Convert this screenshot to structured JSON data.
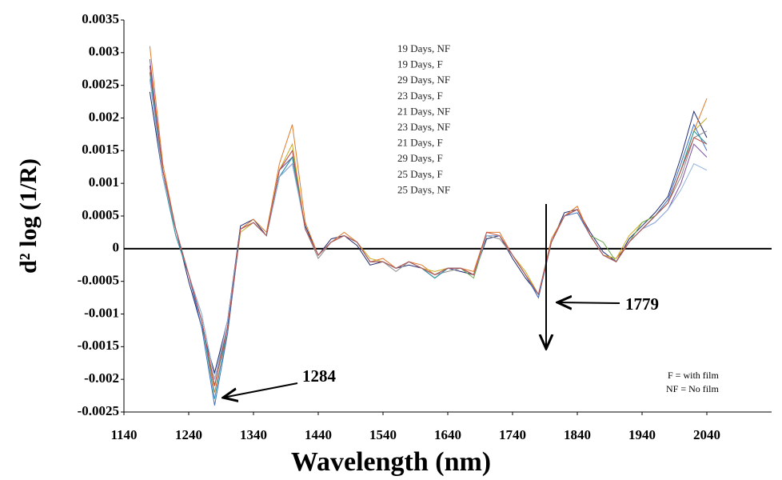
{
  "chart_data": {
    "type": "line",
    "x_label": "Wavelength (nm)",
    "y_label": "d² log (1/R)",
    "x": [
      1180,
      1200,
      1220,
      1240,
      1260,
      1280,
      1300,
      1320,
      1340,
      1360,
      1380,
      1400,
      1420,
      1440,
      1460,
      1480,
      1500,
      1520,
      1540,
      1560,
      1580,
      1600,
      1620,
      1640,
      1660,
      1680,
      1700,
      1720,
      1740,
      1760,
      1780,
      1800,
      1820,
      1840,
      1860,
      1880,
      1900,
      1920,
      1940,
      1960,
      1980,
      2000,
      2020,
      2040
    ],
    "xlim": [
      1140,
      2140
    ],
    "xticks": [
      1140,
      1240,
      1340,
      1440,
      1540,
      1640,
      1740,
      1840,
      1940,
      2040
    ],
    "ylim": [
      -0.0025,
      0.0035
    ],
    "yticks": [
      0.0035,
      0.003,
      0.0025,
      0.002,
      0.0015,
      0.001,
      0.0005,
      0,
      -0.0005,
      -0.001,
      -0.0015,
      -0.002,
      -0.0025
    ],
    "series": [
      {
        "name": "19 Days, NF",
        "color": "#1f2a6e",
        "values": [
          0.0024,
          0.0011,
          0.0003,
          -0.0005,
          -0.0012,
          -0.0019,
          -0.0011,
          0.00035,
          0.00045,
          0.0002,
          0.0011,
          0.0013,
          0.00035,
          -0.0001,
          0.00015,
          0.0002,
          5e-05,
          -0.00025,
          -0.0002,
          -0.0003,
          -0.00025,
          -0.0003,
          -0.00045,
          -0.0003,
          -0.00035,
          -0.0004,
          0.00015,
          0.0002,
          -0.00015,
          -0.00045,
          -0.0007,
          0.0001,
          0.00055,
          0.0006,
          0.00025,
          -5e-05,
          -0.0002,
          0.00015,
          0.00035,
          0.00055,
          0.0008,
          0.0014,
          0.0021,
          0.0017
        ]
      },
      {
        "name": "19 Days, F",
        "color": "#e07b2a",
        "values": [
          0.0031,
          0.0013,
          0.0003,
          -0.0004,
          -0.0011,
          -0.0022,
          -0.0013,
          0.0003,
          0.00045,
          0.00025,
          0.0013,
          0.0019,
          0.0004,
          -0.0001,
          0.0001,
          0.00025,
          0.0001,
          -0.0002,
          -0.00015,
          -0.0003,
          -0.0002,
          -0.00025,
          -0.0004,
          -0.0003,
          -0.0003,
          -0.00035,
          0.00025,
          0.00025,
          -0.0001,
          -0.0004,
          -0.0007,
          0.00015,
          0.0005,
          0.00065,
          0.0002,
          -0.0001,
          -0.00015,
          0.0001,
          0.0003,
          0.0005,
          0.0007,
          0.0012,
          0.0018,
          0.0023
        ]
      },
      {
        "name": "29 Days, NF",
        "color": "#8c8c8c",
        "values": [
          0.0028,
          0.0012,
          0.0002,
          -0.0004,
          -0.001,
          -0.002,
          -0.0012,
          0.0003,
          0.0004,
          0.0002,
          0.0012,
          0.0015,
          0.0003,
          -0.00015,
          0.0001,
          0.0002,
          0.0001,
          -0.0002,
          -0.0002,
          -0.00035,
          -0.0002,
          -0.0003,
          -0.0004,
          -0.00035,
          -0.0003,
          -0.0004,
          0.0002,
          0.00015,
          -0.0001,
          -0.0004,
          -0.00075,
          0.0001,
          0.0005,
          0.0006,
          0.0002,
          -0.0001,
          -0.0002,
          0.0001,
          0.0003,
          0.0005,
          0.0007,
          0.0011,
          0.0017,
          0.0018
        ]
      },
      {
        "name": "23 Days, F",
        "color": "#c9a81c",
        "values": [
          0.0027,
          0.0012,
          0.0003,
          -0.0004,
          -0.0011,
          -0.0021,
          -0.0012,
          0.00025,
          0.0004,
          0.0002,
          0.0012,
          0.0016,
          0.0003,
          -0.0001,
          0.0001,
          0.0002,
          0.0001,
          -0.00015,
          -0.0002,
          -0.0003,
          -0.0002,
          -0.0003,
          -0.00035,
          -0.0003,
          -0.0003,
          -0.0004,
          0.0002,
          0.0002,
          -0.0001,
          -0.00035,
          -0.0007,
          0.0001,
          0.0005,
          0.0006,
          0.0002,
          -0.0001,
          -0.00015,
          0.0002,
          0.0004,
          0.0005,
          0.0007,
          0.0012,
          0.0018,
          0.002
        ]
      },
      {
        "name": "21 Days, NF",
        "color": "#3b6fc4",
        "values": [
          0.0026,
          0.0011,
          0.0003,
          -0.0004,
          -0.0012,
          -0.0024,
          -0.0013,
          0.0003,
          0.0004,
          0.0002,
          0.0011,
          0.0014,
          0.0003,
          -0.0001,
          0.0001,
          0.0002,
          0.0001,
          -0.0002,
          -0.0002,
          -0.0003,
          -0.0002,
          -0.0003,
          -0.00045,
          -0.0003,
          -0.0003,
          -0.0004,
          0.0002,
          0.0002,
          -0.0001,
          -0.0004,
          -0.00075,
          0.0001,
          0.0005,
          0.00055,
          0.0002,
          -0.0001,
          -0.0002,
          0.0001,
          0.0003,
          0.0005,
          0.00075,
          0.0013,
          0.0019,
          0.0015
        ]
      },
      {
        "name": "23 Days, NF",
        "color": "#6aa84f",
        "values": [
          0.0028,
          0.0012,
          0.0003,
          -0.0004,
          -0.0011,
          -0.0021,
          -0.0012,
          0.0003,
          0.0004,
          0.0002,
          0.0012,
          0.0014,
          0.0003,
          -0.0001,
          0.0001,
          0.0002,
          0.0001,
          -0.0002,
          -0.0002,
          -0.0003,
          -0.0002,
          -0.0003,
          -0.0004,
          -0.0003,
          -0.0003,
          -0.00045,
          0.0002,
          0.0002,
          -0.0001,
          -0.0004,
          -0.0007,
          0.0001,
          0.0005,
          0.0006,
          0.0002,
          0.0001,
          -0.0002,
          0.0001,
          0.0004,
          0.0005,
          0.0007,
          0.0012,
          0.0018,
          0.0016
        ]
      },
      {
        "name": "21 Days, F",
        "color": "#7d4fa3",
        "values": [
          0.0029,
          0.0012,
          0.0003,
          -0.0004,
          -0.0011,
          -0.0021,
          -0.0012,
          0.0003,
          0.0004,
          0.0002,
          0.0012,
          0.0014,
          0.0003,
          -0.0001,
          0.0001,
          0.0002,
          0.0001,
          -0.0002,
          -0.0002,
          -0.0003,
          -0.0002,
          -0.0003,
          -0.0004,
          -0.0003,
          -0.0003,
          -0.0004,
          0.0002,
          0.0002,
          -0.0001,
          -0.0004,
          -0.0007,
          0.0001,
          0.0005,
          0.0006,
          0.0002,
          -0.0001,
          -0.0002,
          0.0001,
          0.0003,
          0.0004,
          0.0006,
          0.001,
          0.0016,
          0.0014
        ]
      },
      {
        "name": "29 Days, F",
        "color": "#2e9aa6",
        "values": [
          0.0027,
          0.0011,
          0.0002,
          -0.0004,
          -0.0011,
          -0.0023,
          -0.0012,
          0.0003,
          0.0004,
          0.0002,
          0.0011,
          0.0014,
          0.0003,
          -0.0001,
          0.0001,
          0.0002,
          0.0001,
          -0.0002,
          -0.0002,
          -0.0003,
          -0.0002,
          -0.0003,
          -0.00045,
          -0.0003,
          -0.0003,
          -0.0004,
          0.0002,
          0.0002,
          -0.0001,
          -0.0004,
          -0.0007,
          0.0001,
          0.0005,
          0.0006,
          0.0002,
          -0.0001,
          -0.0002,
          0.0001,
          0.0003,
          0.0005,
          0.0007,
          0.0012,
          0.0018,
          0.0016
        ]
      },
      {
        "name": "25 Days, F",
        "color": "#8fb3de",
        "values": [
          0.0026,
          0.0011,
          0.0003,
          -0.0004,
          -0.001,
          -0.002,
          -0.0011,
          0.0003,
          0.0004,
          0.0002,
          0.0011,
          0.0013,
          0.0003,
          -0.0001,
          0.0001,
          0.0002,
          0.0001,
          -0.0002,
          -0.0002,
          -0.0003,
          -0.0002,
          -0.0003,
          -0.0004,
          -0.0003,
          -0.0003,
          -0.0004,
          0.0002,
          0.0002,
          -0.0001,
          -0.0004,
          -0.0007,
          0.0001,
          0.0005,
          0.0006,
          0.0002,
          -0.0001,
          -0.0002,
          0.0001,
          0.0003,
          0.0004,
          0.0006,
          0.0009,
          0.0013,
          0.0012
        ]
      },
      {
        "name": "25 Days, NF",
        "color": "#c0504d",
        "values": [
          0.0028,
          0.0012,
          0.0003,
          -0.0004,
          -0.0011,
          -0.0021,
          -0.0012,
          0.0003,
          0.0004,
          0.0002,
          0.0012,
          0.0015,
          0.0003,
          -0.0001,
          0.0001,
          0.0002,
          0.0001,
          -0.0002,
          -0.0002,
          -0.0003,
          -0.0002,
          -0.0003,
          -0.0004,
          -0.0003,
          -0.0003,
          -0.0004,
          0.00025,
          0.0002,
          -0.0001,
          -0.0004,
          -0.0007,
          0.0001,
          0.0005,
          0.0006,
          0.0002,
          -0.0001,
          -0.0002,
          0.0001,
          0.0003,
          0.0005,
          0.0007,
          0.0012,
          0.0017,
          0.0016
        ]
      }
    ],
    "annotations": [
      "1284",
      "1779",
      "F = with film",
      "NF = No film"
    ]
  }
}
